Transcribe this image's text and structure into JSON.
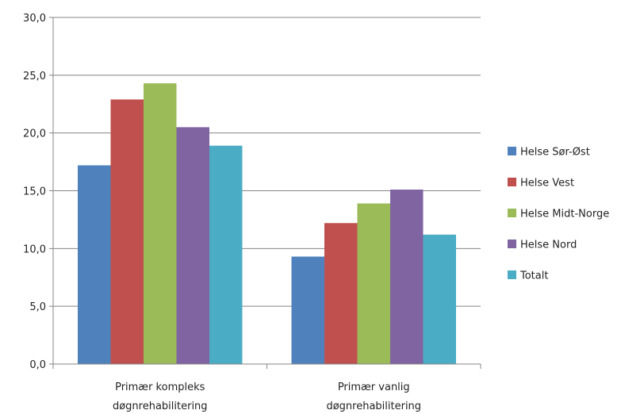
{
  "chart_data": {
    "type": "bar",
    "categories": [
      [
        "Primær kompleks",
        "døgnrehabilitering"
      ],
      [
        "Primær vanlig",
        "døgnrehabilitering"
      ]
    ],
    "series": [
      {
        "name": "Helse Sør-Øst",
        "color": "#4F81BD",
        "values": [
          17.2,
          9.3
        ]
      },
      {
        "name": "Helse Vest",
        "color": "#C0504D",
        "values": [
          22.9,
          12.2
        ]
      },
      {
        "name": "Helse Midt-Norge",
        "color": "#9BBB59",
        "values": [
          24.3,
          13.9
        ]
      },
      {
        "name": "Helse Nord",
        "color": "#8064A2",
        "values": [
          20.5,
          15.1
        ]
      },
      {
        "name": "Totalt",
        "color": "#4BACC6",
        "values": [
          18.9,
          11.2
        ]
      }
    ],
    "yticks": [
      "0,0",
      "5,0",
      "10,0",
      "15,0",
      "20,0",
      "25,0",
      "30,0"
    ],
    "ylim": [
      0,
      30
    ],
    "grid": true,
    "legend_position": "right"
  }
}
